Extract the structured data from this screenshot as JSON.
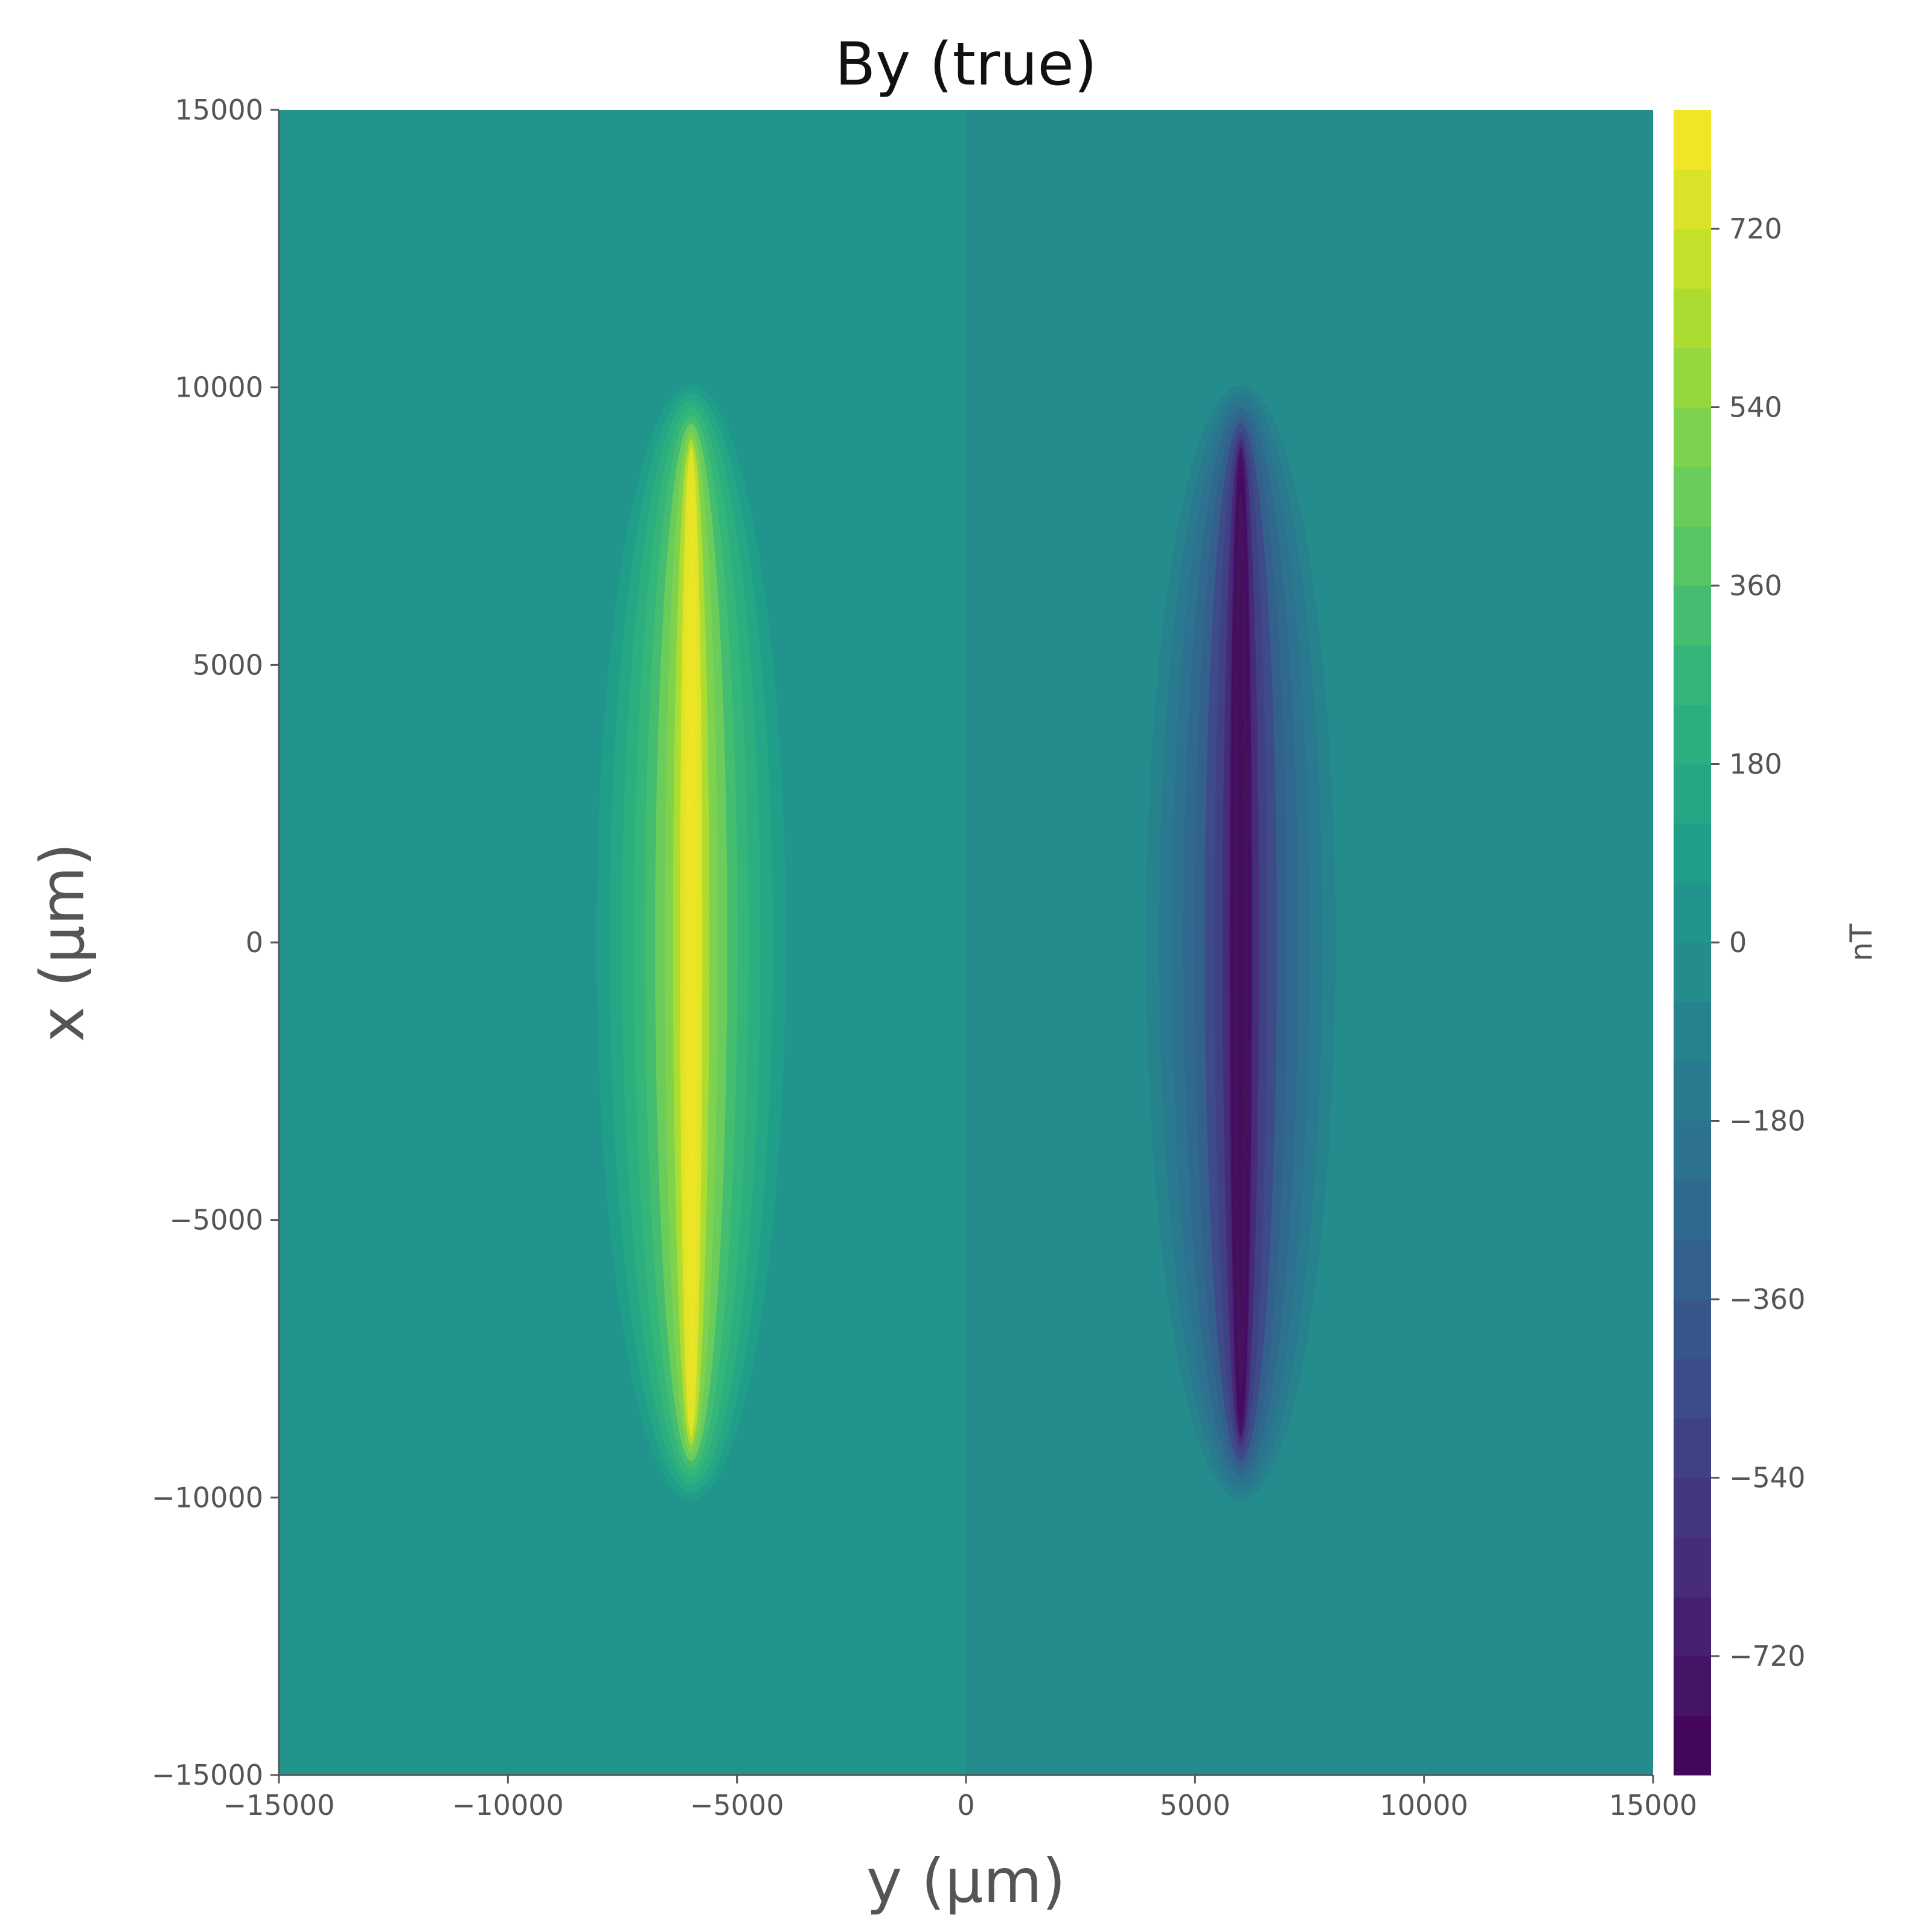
{
  "chart_data": {
    "type": "heatmap",
    "title": "By (true)",
    "xlabel": "y (μm)",
    "ylabel": "x (μm)",
    "xlim": [
      -15000,
      15000
    ],
    "ylim": [
      -15000,
      15000
    ],
    "x_ticks": [
      -15000,
      -10000,
      -5000,
      0,
      5000,
      10000,
      15000
    ],
    "x_tick_labels": [
      "−15000",
      "−10000",
      "−5000",
      "0",
      "5000",
      "10000",
      "15000"
    ],
    "y_ticks": [
      -15000,
      -10000,
      -5000,
      0,
      5000,
      10000,
      15000
    ],
    "y_tick_labels": [
      "−15000",
      "−10000",
      "−5000",
      "0",
      "5000",
      "10000",
      "15000"
    ],
    "colormap": "viridis",
    "grid": false,
    "colorbar": {
      "label": "nT",
      "range": [
        -840,
        840
      ],
      "levels": 28,
      "ticks": [
        720,
        540,
        360,
        180,
        0,
        -180,
        -360,
        -540,
        -720
      ],
      "tick_labels": [
        "720",
        "540",
        "360",
        "180",
        "0",
        "−180",
        "−360",
        "−540",
        "−720"
      ]
    },
    "features": [
      {
        "name": "positive lobe",
        "center_y": -6000,
        "x_extent": [
          -9000,
          9000
        ],
        "peak_nT": 840
      },
      {
        "name": "negative lobe",
        "center_y": 6000,
        "x_extent": [
          -9000,
          9000
        ],
        "peak_nT": -840
      }
    ],
    "background": {
      "left_half_nT": 10,
      "right_half_nT": -10
    }
  },
  "colors": {
    "viridis_stops": [
      "#440154",
      "#482878",
      "#3e4989",
      "#31688e",
      "#26828e",
      "#1f9e89",
      "#35b779",
      "#6ece58",
      "#b5de2b",
      "#fde725"
    ],
    "background": "#ffffff",
    "axis": "#555555"
  }
}
